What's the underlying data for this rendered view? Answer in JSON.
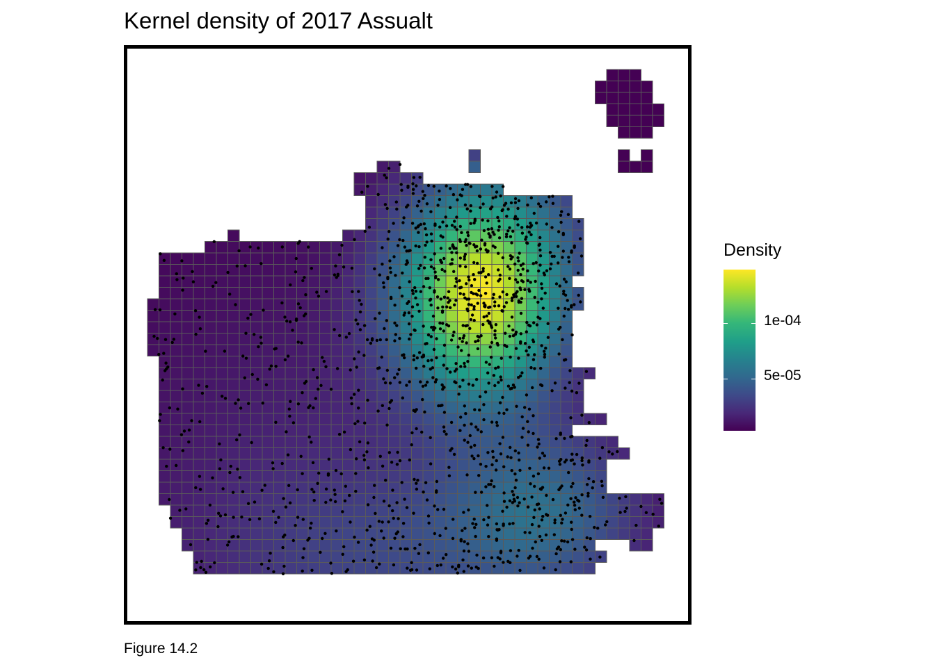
{
  "title": "Kernel density of 2017 Assualt",
  "caption": "Figure 14.2",
  "legend": {
    "title": "Density",
    "breaks": [
      {
        "label": "5e-05",
        "value": 5e-05
      },
      {
        "label": "1e-04",
        "value": 0.0001
      }
    ],
    "range": [
      3e-06,
      0.000148
    ],
    "palette": "viridis"
  },
  "colors": {
    "grid_line": "#5a5a5a",
    "point": "#000000",
    "frame": "#000000",
    "background": "#ffffff"
  },
  "chart_data": {
    "type": "heatmap",
    "title": "Kernel density of 2017 Assualt",
    "fill": "Density",
    "scale": "viridis continuous",
    "peak_value": 0.000148,
    "peak_area": "northeast (downtown)",
    "secondary_peak_area": "southeast",
    "layers": [
      "density grid",
      "assault incident points"
    ]
  }
}
